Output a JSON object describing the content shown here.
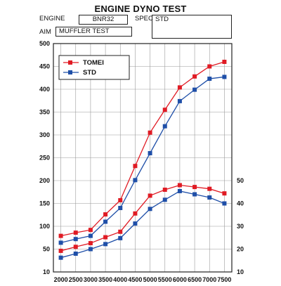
{
  "header": {
    "title": "ENGINE DYNO TEST",
    "engine_label": "ENGINE",
    "engine_value": "BNR32",
    "spec_label": "SPEC",
    "spec_value": "STD",
    "aim_label": "AIM",
    "aim_value": "MUFFLER TEST"
  },
  "chart_data": {
    "type": "line",
    "title": "ENGINE DYNO TEST",
    "x": [
      2000,
      2500,
      3000,
      3500,
      4000,
      4500,
      5000,
      5500,
      6000,
      6500,
      7000,
      7500
    ],
    "xlim": [
      1750,
      7750
    ],
    "y_left_ticks": [
      "500",
      "450",
      "400",
      "350",
      "300",
      "250",
      "200",
      "150",
      "100",
      "50",
      "10"
    ],
    "y_right_ticks": [
      "50",
      "40",
      "30",
      "20",
      "10"
    ],
    "legend_placement": "top-left",
    "grid": true,
    "series": [
      {
        "name": "TOMEI",
        "group": "upper",
        "color": "#e01b24",
        "marker": "square",
        "values": [
          79,
          86,
          92,
          126,
          157,
          232,
          305,
          355,
          404,
          428,
          450,
          460
        ]
      },
      {
        "name": "STD",
        "group": "upper",
        "color": "#1f4fa8",
        "marker": "square",
        "values": [
          64,
          72,
          79,
          110,
          140,
          201,
          260,
          319,
          374,
          399,
          423,
          427
        ]
      },
      {
        "name": "TOMEI",
        "group": "lower",
        "color": "#e01b24",
        "marker": "square",
        "values": [
          47,
          55,
          63,
          76,
          88,
          128,
          167,
          180,
          190,
          186,
          182,
          172
        ]
      },
      {
        "name": "STD",
        "group": "lower",
        "color": "#1f4fa8",
        "marker": "square",
        "values": [
          35,
          42,
          50,
          61,
          74,
          106,
          138,
          158,
          177,
          170,
          163,
          150
        ]
      }
    ],
    "colors": {
      "tomei": "#e01b24",
      "std": "#1f4fa8",
      "grid": "#9a9a9a",
      "frame": "#222222"
    }
  }
}
